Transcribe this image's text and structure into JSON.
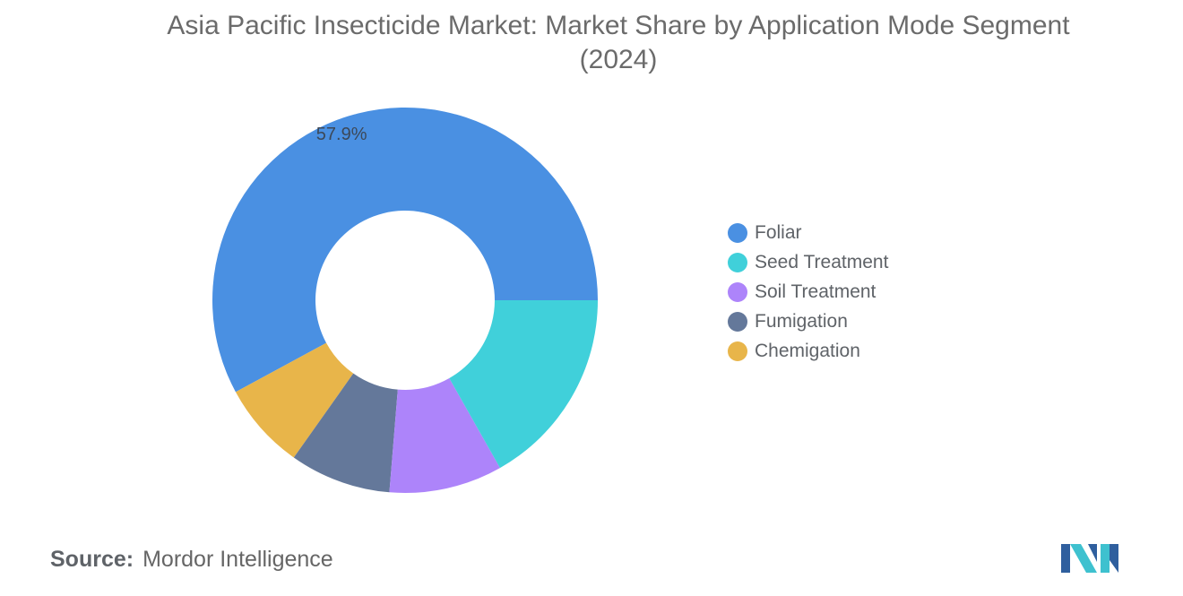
{
  "title_line1": "Asia Pacific Insecticide Market: Market Share by Application Mode Segment",
  "title_line2": "(2024)",
  "chart_data": {
    "type": "pie",
    "donut": true,
    "title": "Asia Pacific Insecticide Market: Market Share by Application Mode Segment (2024)",
    "unit": "%",
    "legend_position": "right",
    "slices": [
      {
        "name": "Foliar",
        "value": 57.9,
        "color": "#4a90e2",
        "label": "57.9%"
      },
      {
        "name": "Chemigation",
        "value": 7.3,
        "color": "#e8b54a",
        "label": ""
      },
      {
        "name": "Fumigation",
        "value": 8.5,
        "color": "#64789a",
        "label": ""
      },
      {
        "name": "Soil Treatment",
        "value": 9.5,
        "color": "#ad84fa",
        "label": ""
      },
      {
        "name": "Seed Treatment",
        "value": 16.8,
        "color": "#40d0da",
        "label": ""
      }
    ]
  },
  "legend": [
    {
      "label": "Foliar",
      "color": "#4a90e2"
    },
    {
      "label": "Seed Treatment",
      "color": "#40d0da"
    },
    {
      "label": "Soil Treatment",
      "color": "#ad84fa"
    },
    {
      "label": "Fumigation",
      "color": "#64789a"
    },
    {
      "label": "Chemigation",
      "color": "#e8b54a"
    }
  ],
  "source": {
    "key": "Source:",
    "value": "Mordor Intelligence"
  },
  "logo": {
    "icon": "mordor-intelligence-logo-icon",
    "colors": [
      "#2f5f9e",
      "#3ec1cf"
    ]
  }
}
